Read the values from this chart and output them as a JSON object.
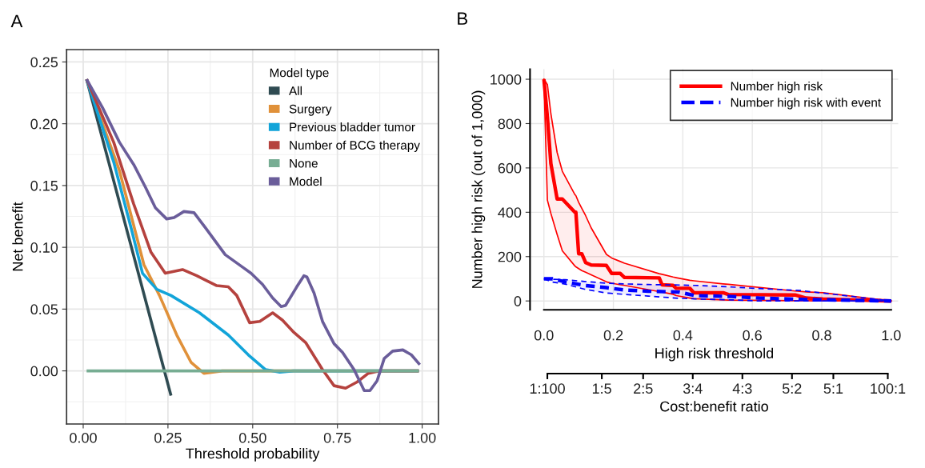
{
  "chart_data": [
    {
      "type": "line",
      "title": "A",
      "xlabel": "Threshold probability",
      "ylabel": "Net benefit",
      "legend_title": "Model type",
      "legend": "top right",
      "grid": true,
      "xlim": [
        -0.049,
        1.048
      ],
      "ylim": [
        -0.043,
        0.26
      ],
      "xticks": [
        {
          "value": 0,
          "label": "0.00"
        },
        {
          "value": 0.25,
          "label": "0.25"
        },
        {
          "value": 0.5,
          "label": "0.50"
        },
        {
          "value": 0.75,
          "label": "0.75"
        },
        {
          "value": 1,
          "label": "1.00"
        }
      ],
      "yticks": [
        {
          "value": 0,
          "label": "0.00"
        },
        {
          "value": 0.05,
          "label": "0.05"
        },
        {
          "value": 0.1,
          "label": "0.10"
        },
        {
          "value": 0.15,
          "label": "0.15"
        },
        {
          "value": 0.2,
          "label": "0.20"
        },
        {
          "value": 0.25,
          "label": "0.25"
        }
      ],
      "series": [
        {
          "name": "All",
          "color": "#2f4b52",
          "x": [
            0.01,
            0.259
          ],
          "values": [
            0.236,
            -0.02
          ]
        },
        {
          "name": "Surgery",
          "color": "#e0913a",
          "x": [
            0.01,
            0.107,
            0.179,
            0.225,
            0.276,
            0.318,
            0.356,
            0.41,
            0.99
          ],
          "values": [
            0.236,
            0.162,
            0.086,
            0.061,
            0.029,
            0.007,
            -0.002,
            0,
            0
          ]
        },
        {
          "name": "Previous bladder tumor",
          "color": "#12a4d9",
          "x": [
            0.01,
            0.09,
            0.141,
            0.175,
            0.217,
            0.259,
            0.343,
            0.428,
            0.487,
            0.538,
            0.58,
            0.62,
            0.99
          ],
          "values": [
            0.236,
            0.169,
            0.116,
            0.079,
            0.066,
            0.061,
            0.047,
            0.029,
            0.013,
            0.001,
            -0.001,
            0,
            0
          ]
        },
        {
          "name": "Number of BCG therapy",
          "color": "#b5423e",
          "x": [
            0.01,
            0.09,
            0.149,
            0.2,
            0.242,
            0.293,
            0.335,
            0.394,
            0.428,
            0.453,
            0.491,
            0.521,
            0.559,
            0.588,
            0.622,
            0.656,
            0.706,
            0.74,
            0.774,
            0.808,
            0.841,
            0.875,
            0.99
          ],
          "values": [
            0.236,
            0.185,
            0.135,
            0.096,
            0.079,
            0.082,
            0.077,
            0.069,
            0.068,
            0.061,
            0.039,
            0.04,
            0.047,
            0.041,
            0.031,
            0.023,
            0.001,
            -0.012,
            -0.014,
            -0.009,
            -0.002,
            0,
            0
          ]
        },
        {
          "name": "None",
          "color": "#77ad93",
          "x": [
            0.01,
            0.99
          ],
          "values": [
            0,
            0
          ]
        },
        {
          "name": "Model",
          "color": "#6a5d9a",
          "x": [
            0.01,
            0.057,
            0.107,
            0.149,
            0.183,
            0.213,
            0.246,
            0.268,
            0.297,
            0.327,
            0.36,
            0.419,
            0.47,
            0.495,
            0.529,
            0.559,
            0.584,
            0.597,
            0.63,
            0.651,
            0.66,
            0.681,
            0.706,
            0.74,
            0.765,
            0.799,
            0.829,
            0.846,
            0.867,
            0.888,
            0.913,
            0.943,
            0.968,
            0.993
          ],
          "values": [
            0.236,
            0.213,
            0.185,
            0.167,
            0.149,
            0.132,
            0.123,
            0.124,
            0.129,
            0.128,
            0.116,
            0.094,
            0.084,
            0.079,
            0.07,
            0.059,
            0.052,
            0.053,
            0.068,
            0.077,
            0.076,
            0.063,
            0.04,
            0.022,
            0.015,
            0.001,
            -0.016,
            -0.016,
            -0.008,
            0.01,
            0.016,
            0.017,
            0.013,
            0.005
          ]
        }
      ]
    },
    {
      "type": "line",
      "title": "B",
      "xlabel": "High risk threshold",
      "ylabel": "Number high risk (out of 1,000)",
      "x2label": "Cost:benefit ratio",
      "legend": "top right",
      "grid": true,
      "xlim": [
        -0.04,
        1.02
      ],
      "ylim": [
        -40,
        1045
      ],
      "xticks": [
        {
          "value": 0,
          "label": "0.0"
        },
        {
          "value": 0.2,
          "label": "0.2"
        },
        {
          "value": 0.4,
          "label": "0.4"
        },
        {
          "value": 0.6,
          "label": "0.6"
        },
        {
          "value": 0.8,
          "label": "0.8"
        },
        {
          "value": 1,
          "label": "1.0"
        }
      ],
      "yticks": [
        0,
        200,
        400,
        600,
        800,
        1000
      ],
      "annotations": [
        "1:100",
        "1:5",
        "2:5",
        "3:4",
        "4:3",
        "5:2",
        "5:1",
        "100:1"
      ],
      "series": [
        {
          "name": "Number high risk",
          "color": "#ff0000",
          "line_style": "solid",
          "x": [
            0,
            0.01,
            0.02,
            0.038,
            0.053,
            0.089,
            0.092,
            0.1,
            0.109,
            0.12,
            0.136,
            0.18,
            0.195,
            0.22,
            0.232,
            0.332,
            0.34,
            0.372,
            0.381,
            0.42,
            0.432,
            0.516,
            0.531,
            0.723,
            0.755,
            0.803,
            1.0
          ],
          "values": [
            1000,
            830,
            620,
            460,
            460,
            400,
            400,
            213,
            213,
            173,
            162,
            160,
            124,
            124,
            106,
            104,
            73,
            70,
            57,
            57,
            37,
            37,
            29,
            27,
            13,
            9,
            0
          ],
          "upper": [
            1000,
            976,
            845,
            670,
            585,
            480,
            475,
            445,
            418,
            385,
            330,
            210,
            194,
            178,
            170,
            123,
            120,
            108,
            105,
            93,
            91,
            77,
            75,
            45,
            41,
            37,
            0
          ],
          "lower": [
            1000,
            455,
            395,
            300,
            226,
            158,
            154,
            146,
            137,
            130,
            118,
            86,
            80,
            73,
            70,
            42,
            40,
            30,
            24,
            13,
            10,
            5,
            4,
            1,
            1,
            0,
            0
          ]
        },
        {
          "name": "Number high risk with event",
          "color": "#0000ff",
          "line_style": "dashed",
          "x": [
            0,
            0.025,
            0.061,
            0.117,
            0.18,
            0.228,
            0.3,
            0.388,
            0.436,
            0.54,
            0.619,
            0.739,
            1.0
          ],
          "values": [
            100,
            100,
            86,
            70,
            60,
            50,
            44,
            40,
            24,
            20,
            13,
            7,
            0
          ],
          "upper": [
            100,
            98,
            96,
            88,
            80,
            77,
            74,
            72,
            70,
            63,
            56,
            47,
            0
          ],
          "lower": [
            100,
            85,
            76,
            53,
            36,
            30,
            22,
            12,
            9,
            5,
            0,
            0,
            0
          ]
        }
      ]
    }
  ]
}
